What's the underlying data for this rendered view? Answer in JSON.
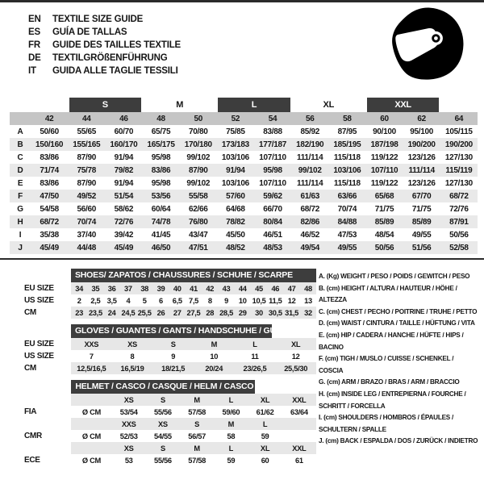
{
  "header": {
    "languages": [
      {
        "code": "EN",
        "text": "TEXTILE SIZE GUIDE"
      },
      {
        "code": "ES",
        "text": "GUÍA DE TALLAS"
      },
      {
        "code": "FR",
        "text": "GUIDE DES TAILLES TEXTILE"
      },
      {
        "code": "DE",
        "text": "TEXTILGRÖßENFÜHRUNG"
      },
      {
        "code": "IT",
        "text": "GUIDA ALLE TAGLIE TESSILI"
      }
    ],
    "helmet_icon": "racing-helmet-icon"
  },
  "main_table": {
    "groups": [
      {
        "label": "",
        "span": 1,
        "dark": false
      },
      {
        "label": "S",
        "span": 2,
        "dark": true
      },
      {
        "label": "M",
        "span": 2,
        "dark": false
      },
      {
        "label": "L",
        "span": 2,
        "dark": true
      },
      {
        "label": "XL",
        "span": 2,
        "dark": false
      },
      {
        "label": "XXL",
        "span": 2,
        "dark": true
      },
      {
        "label": "",
        "span": 1,
        "dark": false
      }
    ],
    "columns": [
      "42",
      "44",
      "46",
      "48",
      "50",
      "52",
      "54",
      "56",
      "58",
      "60",
      "62",
      "64"
    ],
    "rows": [
      {
        "label": "A",
        "values": [
          "50/60",
          "55/65",
          "60/70",
          "65/75",
          "70/80",
          "75/85",
          "83/88",
          "85/92",
          "87/95",
          "90/100",
          "95/100",
          "105/115"
        ]
      },
      {
        "label": "B",
        "values": [
          "150/160",
          "155/165",
          "160/170",
          "165/175",
          "170/180",
          "173/183",
          "177/187",
          "182/190",
          "185/195",
          "187/198",
          "190/200",
          "190/200"
        ]
      },
      {
        "label": "C",
        "values": [
          "83/86",
          "87/90",
          "91/94",
          "95/98",
          "99/102",
          "103/106",
          "107/110",
          "111/114",
          "115/118",
          "119/122",
          "123/126",
          "127/130"
        ]
      },
      {
        "label": "D",
        "values": [
          "71/74",
          "75/78",
          "79/82",
          "83/86",
          "87/90",
          "91/94",
          "95/98",
          "99/102",
          "103/106",
          "107/110",
          "111/114",
          "115/119"
        ]
      },
      {
        "label": "E",
        "values": [
          "83/86",
          "87/90",
          "91/94",
          "95/98",
          "99/102",
          "103/106",
          "107/110",
          "111/114",
          "115/118",
          "119/122",
          "123/126",
          "127/130"
        ]
      },
      {
        "label": "F",
        "values": [
          "47/50",
          "49/52",
          "51/54",
          "53/56",
          "55/58",
          "57/60",
          "59/62",
          "61/63",
          "63/66",
          "65/68",
          "67/70",
          "68/72"
        ]
      },
      {
        "label": "G",
        "values": [
          "54/58",
          "56/60",
          "58/62",
          "60/64",
          "62/66",
          "64/68",
          "66/70",
          "68/72",
          "70/74",
          "71/75",
          "71/75",
          "72/76"
        ]
      },
      {
        "label": "H",
        "values": [
          "68/72",
          "70/74",
          "72/76",
          "74/78",
          "76/80",
          "78/82",
          "80/84",
          "82/86",
          "84/88",
          "85/89",
          "85/89",
          "87/91"
        ]
      },
      {
        "label": "I",
        "values": [
          "35/38",
          "37/40",
          "39/42",
          "41/45",
          "43/47",
          "45/50",
          "46/51",
          "46/52",
          "47/53",
          "48/54",
          "49/55",
          "50/56"
        ]
      },
      {
        "label": "J",
        "values": [
          "45/49",
          "44/48",
          "45/49",
          "46/50",
          "47/51",
          "48/52",
          "48/53",
          "49/54",
          "49/55",
          "50/56",
          "51/56",
          "52/58"
        ]
      }
    ]
  },
  "shoes_table": {
    "title": "SHOES/ ZAPATOS / CHAUSSURES / SCHUHE / SCARPE",
    "rows": [
      {
        "label": "EU SIZE",
        "band": true,
        "values": [
          "34",
          "35",
          "36",
          "37",
          "38",
          "39",
          "40",
          "41",
          "42",
          "43",
          "44",
          "45",
          "46",
          "47",
          "48"
        ]
      },
      {
        "label": "US SIZE",
        "band": false,
        "values": [
          "2",
          "2,5",
          "3,5",
          "4",
          "5",
          "6",
          "6,5",
          "7,5",
          "8",
          "9",
          "10",
          "10,5",
          "11,5",
          "12",
          "13"
        ]
      },
      {
        "label": "CM",
        "band": true,
        "values": [
          "23",
          "23,5",
          "24",
          "24,5",
          "25,5",
          "26",
          "27",
          "27,5",
          "28",
          "28,5",
          "29",
          "30",
          "30,5",
          "31,5",
          "32"
        ]
      }
    ]
  },
  "gloves_table": {
    "title": "GLOVES / GUANTES / GANTS / HANDSCHUHE / GUANTI",
    "rows": [
      {
        "label": "EU SIZE",
        "band": true,
        "values": [
          "XXS",
          "XS",
          "S",
          "M",
          "L",
          "XL"
        ]
      },
      {
        "label": "US SIZE",
        "band": false,
        "values": [
          "7",
          "8",
          "9",
          "10",
          "11",
          "12"
        ]
      },
      {
        "label": "CM",
        "band": true,
        "values": [
          "12,5/16,5",
          "16,5/19",
          "18/21,5",
          "20/24",
          "23/26,5",
          "25,5/30"
        ]
      }
    ]
  },
  "helmet_table": {
    "title": "HELMET / CASCO / CASQUE / HELM / CASCO",
    "sections": [
      {
        "label": "FIA",
        "unit": "Ø CM",
        "sizes": [
          "XS",
          "S",
          "M",
          "L",
          "XL",
          "XXL"
        ],
        "values": [
          "53/54",
          "55/56",
          "57/58",
          "59/60",
          "61/62",
          "63/64"
        ]
      },
      {
        "label": "CMR",
        "unit": "Ø CM",
        "sizes": [
          "XXS",
          "XS",
          "S",
          "M",
          "L",
          ""
        ],
        "values": [
          "52/53",
          "54/55",
          "56/57",
          "58",
          "59",
          ""
        ]
      },
      {
        "label": "ECE",
        "unit": "Ø CM",
        "sizes": [
          "XS",
          "S",
          "M",
          "L",
          "XL",
          "XXL"
        ],
        "values": [
          "53",
          "55/56",
          "57/58",
          "59",
          "60",
          "61"
        ]
      }
    ]
  },
  "legend": {
    "items": [
      "A. (Kg) WEIGHT / PESO / POIDS / GEWITCH / PESO",
      "B. (cm) HEIGHT / ALTURA / HAUTEUR / HÖHE / ALTEZZA",
      "C. (cm) CHEST / PECHO / POITRINE / TRUHE / PETTO",
      "D. (cm) WAIST / CINTURA / TAILLE / HÜFTUNG / VITA",
      "E. (cm) HIP / CADERA / HANCHE / HÜFTE / HIPS / BACINO",
      "F. (cm) TIGH / MUSLO / CUISSE / SCHENKEL / COSCIA",
      "G. (cm) ARM / BRAZO / BRAS / ARM / BRACCIO",
      "H. (cm) INSIDE LEG / ENTREPIERNA / FOURCHE / SCHRITT / FORCELLA",
      "I. (cm) SHOULDERS / HOMBROS / ÉPAULES / SCHULTERN / SPALLE",
      "J. (cm) BACK / ESPALDA / DOS / ZURÜCK / INDIETRO"
    ]
  },
  "colors": {
    "dark_bar": "#3d3d3d",
    "column_header_band": "#c5c5c5",
    "row_band": "#e9e9e9",
    "rule_line": "#2b2b2b"
  }
}
